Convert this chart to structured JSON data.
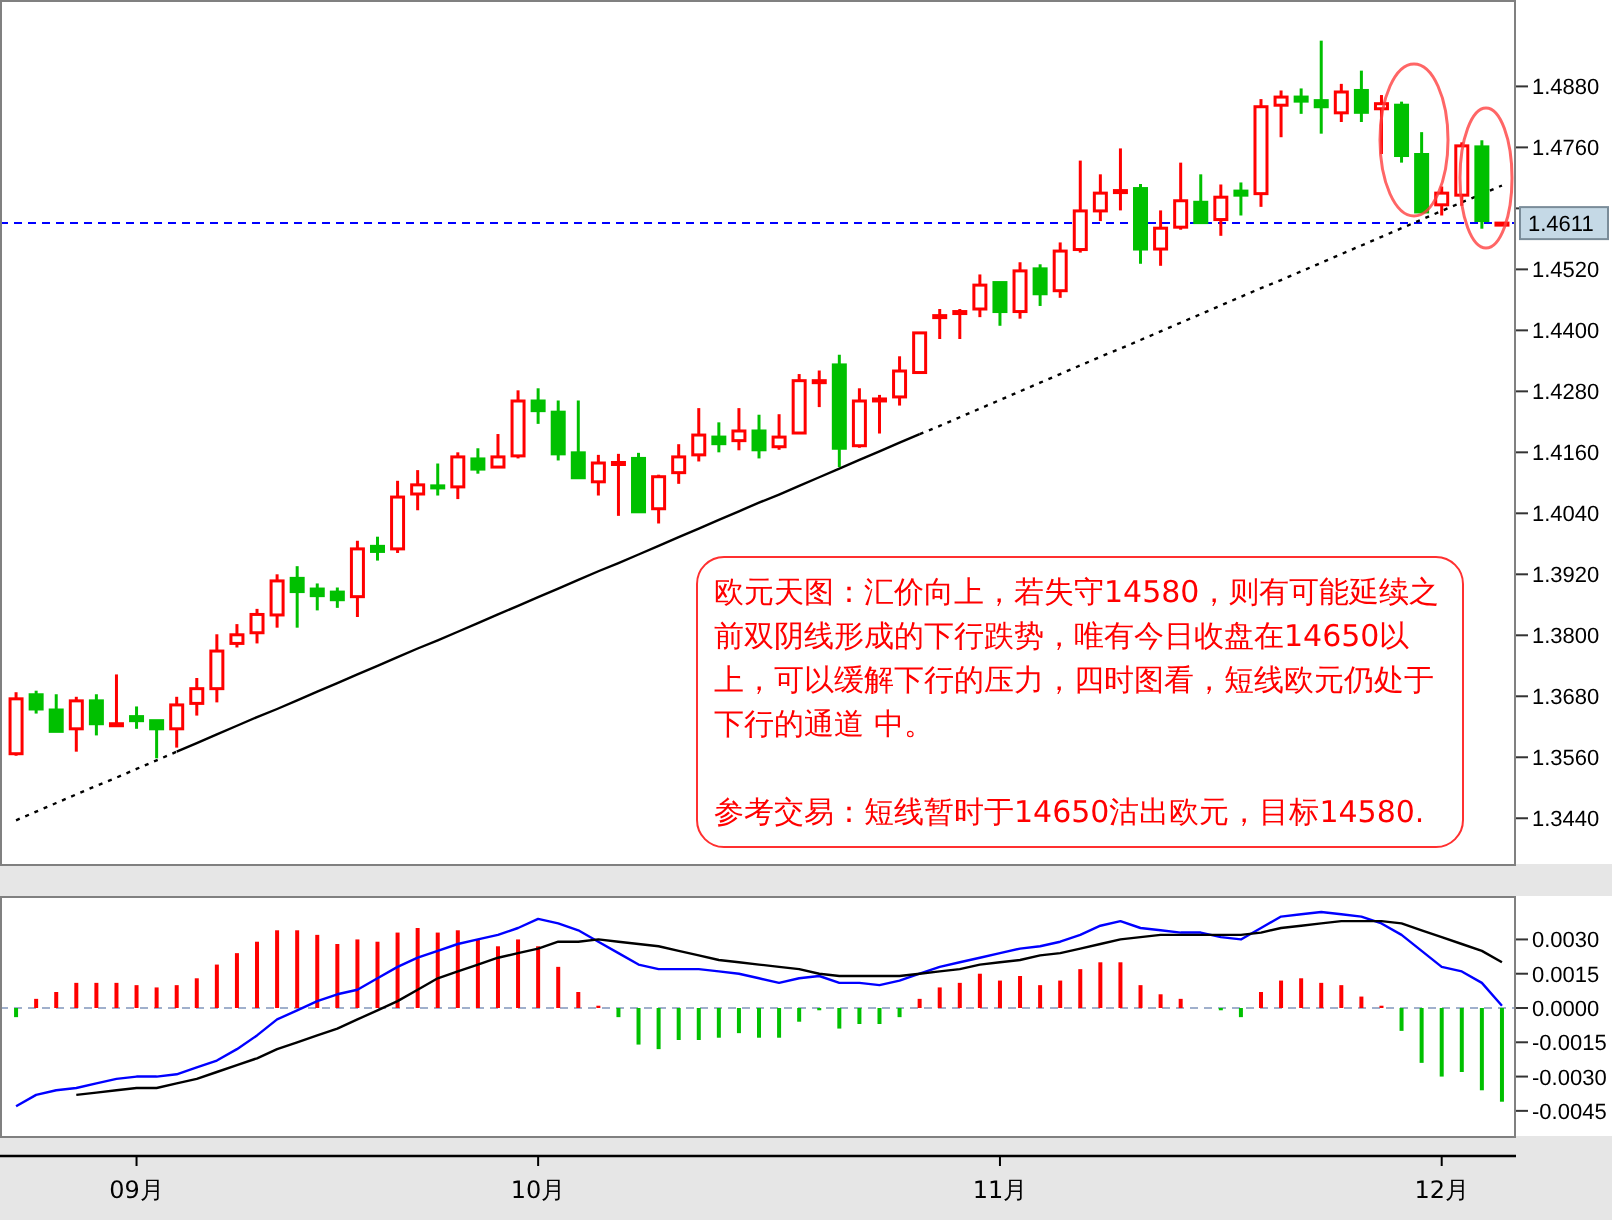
{
  "chart_data": [
    {
      "type": "candlestick",
      "tick_labels": "y",
      "categories": [
        null,
        null,
        null,
        null,
        null,
        null,
        null,
        null,
        null,
        null,
        null,
        null,
        null,
        null,
        null,
        null,
        null,
        null,
        null,
        null,
        null,
        null,
        null,
        null,
        null,
        null,
        null,
        null,
        null,
        null,
        null,
        null,
        null,
        null,
        null,
        null,
        null,
        null,
        null,
        null,
        null,
        null,
        null,
        null,
        null,
        null,
        null,
        null,
        null,
        null,
        null,
        null,
        null,
        null,
        null,
        null,
        null,
        null,
        null,
        null,
        null,
        null,
        null,
        null,
        null,
        null,
        null,
        null,
        null,
        null,
        null,
        null,
        null,
        null,
        null
      ],
      "ohlc": [
        [
          1.3567,
          1.3688,
          1.3563,
          1.3675
        ],
        [
          1.3683,
          1.3691,
          1.3646,
          1.3655
        ],
        [
          1.3653,
          1.3684,
          1.3611,
          1.3611
        ],
        [
          1.3616,
          1.3679,
          1.3571,
          1.3671
        ],
        [
          1.3671,
          1.3684,
          1.3603,
          1.3626
        ],
        [
          1.3625,
          1.3723,
          1.3625,
          1.3626
        ],
        [
          1.364,
          1.366,
          1.3616,
          1.3632
        ],
        [
          1.3632,
          1.3632,
          1.3558,
          1.3616
        ],
        [
          1.3616,
          1.3679,
          1.3579,
          1.3663
        ],
        [
          1.3666,
          1.3716,
          1.3642,
          1.3695
        ],
        [
          1.3695,
          1.3802,
          1.3668,
          1.3769
        ],
        [
          1.3784,
          1.3822,
          1.3776,
          1.3801
        ],
        [
          1.3805,
          1.3852,
          1.3784,
          1.3841
        ],
        [
          1.384,
          1.392,
          1.3815,
          1.3907
        ],
        [
          1.3912,
          1.3936,
          1.3815,
          1.3886
        ],
        [
          1.3891,
          1.3902,
          1.3849,
          1.3878
        ],
        [
          1.3885,
          1.3894,
          1.3854,
          1.387
        ],
        [
          1.3876,
          1.3986,
          1.3836,
          1.397
        ],
        [
          1.3975,
          1.3994,
          1.3947,
          1.3965
        ],
        [
          1.397,
          1.4104,
          1.3962,
          1.4072
        ],
        [
          1.4078,
          1.4125,
          1.4046,
          1.4096
        ],
        [
          1.4094,
          1.4138,
          1.4075,
          1.409
        ],
        [
          1.4092,
          1.416,
          1.4068,
          1.4151
        ],
        [
          1.4147,
          1.4168,
          1.4118,
          1.4127
        ],
        [
          1.4131,
          1.4196,
          1.4131,
          1.4151
        ],
        [
          1.4153,
          1.4282,
          1.4148,
          1.4261
        ],
        [
          1.4261,
          1.4286,
          1.4216,
          1.4242
        ],
        [
          1.4239,
          1.4262,
          1.4144,
          1.4157
        ],
        [
          1.4159,
          1.4262,
          1.411,
          1.411
        ],
        [
          1.4102,
          1.4155,
          1.4075,
          1.4139
        ],
        [
          1.4139,
          1.4157,
          1.4035,
          1.414
        ],
        [
          1.4148,
          1.4159,
          1.4043,
          1.4043
        ],
        [
          1.4049,
          1.4116,
          1.402,
          1.4112
        ],
        [
          1.412,
          1.4176,
          1.4098,
          1.4151
        ],
        [
          1.4155,
          1.4247,
          1.4142,
          1.4194
        ],
        [
          1.419,
          1.4219,
          1.416,
          1.4177
        ],
        [
          1.4183,
          1.4247,
          1.4164,
          1.4202
        ],
        [
          1.4202,
          1.4234,
          1.4148,
          1.4165
        ],
        [
          1.4171,
          1.4235,
          1.4165,
          1.419
        ],
        [
          1.4198,
          1.4314,
          1.4198,
          1.4301
        ],
        [
          1.43,
          1.4321,
          1.4249,
          1.4301
        ],
        [
          1.4332,
          1.4352,
          1.4131,
          1.4168
        ],
        [
          1.4173,
          1.4286,
          1.4169,
          1.4261
        ],
        [
          1.4264,
          1.4273,
          1.4197,
          1.4265
        ],
        [
          1.4269,
          1.4349,
          1.4252,
          1.432
        ],
        [
          1.4317,
          1.4395,
          1.4315,
          1.4395
        ],
        [
          1.4428,
          1.4442,
          1.4383,
          1.4429
        ],
        [
          1.4436,
          1.4442,
          1.4383,
          1.4437
        ],
        [
          1.4442,
          1.451,
          1.4426,
          1.4489
        ],
        [
          1.4494,
          1.4494,
          1.4409,
          1.4437
        ],
        [
          1.4437,
          1.4534,
          1.4423,
          1.4517
        ],
        [
          1.4521,
          1.453,
          1.4448,
          1.4472
        ],
        [
          1.4478,
          1.4573,
          1.4464,
          1.4556
        ],
        [
          1.4559,
          1.4734,
          1.4553,
          1.4635
        ],
        [
          1.4635,
          1.4707,
          1.4615,
          1.467
        ],
        [
          1.4674,
          1.4758,
          1.4636,
          1.4675
        ],
        [
          1.4679,
          1.4688,
          1.4531,
          1.456
        ],
        [
          1.456,
          1.4636,
          1.4527,
          1.4601
        ],
        [
          1.4603,
          1.473,
          1.4598,
          1.4655
        ],
        [
          1.4652,
          1.4707,
          1.461,
          1.4612
        ],
        [
          1.4618,
          1.4687,
          1.4586,
          1.4662
        ],
        [
          1.4674,
          1.4691,
          1.4626,
          1.4666
        ],
        [
          1.4669,
          1.4855,
          1.4643,
          1.484
        ],
        [
          1.4843,
          1.4872,
          1.478,
          1.4859
        ],
        [
          1.4859,
          1.4876,
          1.4826,
          1.4851
        ],
        [
          1.4852,
          1.497,
          1.4787,
          1.484
        ],
        [
          1.4828,
          1.4885,
          1.481,
          1.4869
        ],
        [
          1.4872,
          1.4911,
          1.481,
          1.4829
        ],
        [
          1.4836,
          1.4863,
          1.4747,
          1.4846
        ],
        [
          1.4843,
          1.485,
          1.473,
          1.4744
        ],
        [
          1.4746,
          1.479,
          1.4632,
          1.4633
        ],
        [
          1.4647,
          1.4683,
          1.4626,
          1.467
        ],
        [
          1.4666,
          1.477,
          1.4645,
          1.4763
        ],
        [
          1.4761,
          1.4774,
          1.46,
          1.4616
        ],
        [
          1.461,
          1.4613,
          1.4609,
          1.4611
        ]
      ],
      "colors": [
        "#ff0000",
        "#00c000",
        "#00c000",
        "#ff0000",
        "#00c000",
        "#ff0000",
        "#00c000",
        "#00c000",
        "#ff0000",
        "#ff0000",
        "#ff0000",
        "#ff0000",
        "#ff0000",
        "#ff0000",
        "#00c000",
        "#00c000",
        "#00c000",
        "#ff0000",
        "#00c000",
        "#ff0000",
        "#ff0000",
        "#00c000",
        "#ff0000",
        "#00c000",
        "#ff0000",
        "#ff0000",
        "#00c000",
        "#00c000",
        "#00c000",
        "#ff0000",
        "#ff0000",
        "#00c000",
        "#ff0000",
        "#ff0000",
        "#ff0000",
        "#00c000",
        "#ff0000",
        "#00c000",
        "#ff0000",
        "#ff0000",
        "#ff0000",
        "#00c000",
        "#ff0000",
        "#ff0000",
        "#ff0000",
        "#ff0000",
        "#ff0000",
        "#ff0000",
        "#ff0000",
        "#00c000",
        "#ff0000",
        "#00c000",
        "#ff0000",
        "#ff0000",
        "#ff0000",
        "#ff0000",
        "#00c000",
        "#ff0000",
        "#ff0000",
        "#00c000",
        "#ff0000",
        "#00c000",
        "#ff0000",
        "#ff0000",
        "#00c000",
        "#00c000",
        "#ff0000",
        "#00c000",
        "#ff0000",
        "#00c000",
        "#00c000",
        "#ff0000",
        "#ff0000",
        "#00c000",
        "#ff0000"
      ],
      "series": [
        {
          "type": "line",
          "color": "#000000",
          "line_style": "dotted",
          "values": [
            1.3436,
            1.3453,
            1.347,
            1.3487,
            1.3504,
            1.352,
            1.3537,
            1.3554,
            1.3571,
            null,
            null,
            null,
            null,
            null,
            null,
            null,
            null,
            null,
            null,
            null,
            null,
            null,
            null,
            null,
            null,
            null,
            null,
            null,
            null,
            null,
            null,
            null,
            null,
            null,
            null,
            null,
            null,
            null,
            null,
            null,
            null,
            null,
            null,
            null,
            null,
            null,
            null,
            null,
            null,
            null,
            null,
            null,
            null,
            null,
            null,
            null,
            null,
            null,
            null,
            null,
            null,
            null,
            null,
            null,
            null,
            null,
            null,
            null,
            null,
            null,
            null,
            null,
            null,
            null,
            null
          ]
        },
        {
          "type": "line",
          "color": "#000000",
          "line_style": "solid",
          "values": [
            null,
            null,
            null,
            null,
            null,
            null,
            null,
            null,
            1.3571,
            1.3588,
            1.3605,
            1.3622,
            1.3639,
            1.3655,
            1.3672,
            1.3689,
            1.3706,
            1.3723,
            1.374,
            1.3757,
            1.3774,
            1.379,
            1.3807,
            1.3824,
            1.3841,
            1.3858,
            1.3875,
            1.3892,
            1.3909,
            1.3926,
            1.3942,
            1.3959,
            1.3976,
            1.3993,
            1.401,
            1.4027,
            1.4044,
            1.4061,
            1.4077,
            1.4094,
            1.4111,
            1.4128,
            1.4145,
            1.4162,
            1.4179,
            1.4196,
            null,
            null,
            null,
            null,
            null,
            null,
            null,
            null,
            null,
            null,
            null,
            null,
            null,
            null,
            null,
            null,
            null,
            null,
            null,
            null,
            null,
            null,
            null,
            null,
            null,
            null,
            null,
            null,
            null
          ]
        },
        {
          "type": "line",
          "color": "#000000",
          "line_style": "dotted",
          "values": [
            null,
            null,
            null,
            null,
            null,
            null,
            null,
            null,
            null,
            null,
            null,
            null,
            null,
            null,
            null,
            null,
            null,
            null,
            null,
            null,
            null,
            null,
            null,
            null,
            null,
            null,
            null,
            null,
            null,
            null,
            null,
            null,
            null,
            null,
            null,
            null,
            null,
            null,
            null,
            null,
            null,
            null,
            null,
            null,
            null,
            1.4196,
            1.4212,
            1.4229,
            1.4246,
            1.4263,
            1.428,
            1.4297,
            1.4314,
            1.4331,
            1.4348,
            1.4364,
            1.4381,
            1.4398,
            1.4415,
            1.4432,
            1.4449,
            1.4466,
            1.4483,
            1.4499,
            1.4516,
            1.4533,
            1.455,
            1.4567,
            1.4584,
            1.4601,
            1.4618,
            1.4635,
            1.4652,
            1.4668,
            1.4685
          ]
        }
      ],
      "ylim": [
        1.335,
        1.505
      ],
      "yticks": [
        {
          "value": 1.344,
          "label": "1.3440"
        },
        {
          "value": 1.356,
          "label": "1.3560"
        },
        {
          "value": 1.368,
          "label": "1.3680"
        },
        {
          "value": 1.38,
          "label": "1.3800"
        },
        {
          "value": 1.392,
          "label": "1.3920"
        },
        {
          "value": 1.404,
          "label": "1.4040"
        },
        {
          "value": 1.416,
          "label": "1.4160"
        },
        {
          "value": 1.428,
          "label": "1.4280"
        },
        {
          "value": 1.44,
          "label": "1.4400"
        },
        {
          "value": 1.452,
          "label": "1.4520"
        },
        {
          "value": 1.464,
          "label": null
        },
        {
          "value": 1.476,
          "label": "1.4760"
        },
        {
          "value": 1.488,
          "label": "1.4880"
        }
      ],
      "ref_lines": [
        {
          "axis": "y",
          "value": 1.4611,
          "label": "1.4611",
          "color": "#0000ff",
          "line_style": "dashed"
        }
      ],
      "annotations": [
        "欧元天图：汇价向上，若失守14580，则有可能延续之前双阴线形成的下行跌势，唯有今日收盘在14650以上，可以缓解下行的压力，四时图看，短线欧元仍处于下行的通道 中。",
        "参考交易：短线暂时于14650沽出欧元，目标14580."
      ]
    },
    {
      "type": "bar",
      "categories": [
        null,
        null,
        null,
        null,
        null,
        null,
        "09月",
        null,
        null,
        null,
        null,
        null,
        null,
        null,
        null,
        null,
        null,
        null,
        null,
        null,
        null,
        null,
        null,
        null,
        null,
        null,
        "10月",
        null,
        null,
        null,
        null,
        null,
        null,
        null,
        null,
        null,
        null,
        null,
        null,
        null,
        null,
        null,
        null,
        null,
        null,
        null,
        null,
        null,
        null,
        "11月",
        null,
        null,
        null,
        null,
        null,
        null,
        null,
        null,
        null,
        null,
        null,
        null,
        null,
        null,
        null,
        null,
        null,
        null,
        null,
        null,
        null,
        "12月",
        null,
        null,
        null
      ],
      "series": [
        {
          "type": "bar",
          "values": [
            -0.0004,
            0.0004,
            0.0007,
            0.0011,
            0.0011,
            0.0011,
            0.001,
            0.0009,
            0.001,
            0.0013,
            0.0019,
            0.0024,
            0.0029,
            0.0034,
            0.0034,
            0.0032,
            0.0028,
            0.003,
            0.0029,
            0.0033,
            0.0035,
            0.0033,
            0.0034,
            0.003,
            0.0027,
            0.003,
            0.0027,
            0.0018,
            0.0007,
            0.0001,
            -0.0004,
            -0.0016,
            -0.0018,
            -0.0014,
            -0.0014,
            -0.0013,
            -0.0011,
            -0.0013,
            -0.0013,
            -0.0006,
            -0.0001,
            -0.0009,
            -0.0007,
            -0.0007,
            -0.0004,
            0.0004,
            0.0009,
            0.0011,
            0.0015,
            0.0012,
            0.0014,
            0.001,
            0.0012,
            0.0017,
            0.002,
            0.002,
            0.001,
            0.0006,
            0.0004,
            0,
            -0.0001,
            -0.0004,
            0.0007,
            0.0012,
            0.0013,
            0.0011,
            0.001,
            0.0005,
            0.0001,
            -0.001,
            -0.0024,
            -0.003,
            -0.0028,
            -0.0036,
            -0.0041
          ],
          "colors": [
            "#00c000",
            "#ff0000",
            "#ff0000",
            "#ff0000",
            "#ff0000",
            "#ff0000",
            "#ff0000",
            "#ff0000",
            "#ff0000",
            "#ff0000",
            "#ff0000",
            "#ff0000",
            "#ff0000",
            "#ff0000",
            "#ff0000",
            "#ff0000",
            "#ff0000",
            "#ff0000",
            "#ff0000",
            "#ff0000",
            "#ff0000",
            "#ff0000",
            "#ff0000",
            "#ff0000",
            "#ff0000",
            "#ff0000",
            "#ff0000",
            "#ff0000",
            "#ff0000",
            "#ff0000",
            "#00c000",
            "#00c000",
            "#00c000",
            "#00c000",
            "#00c000",
            "#00c000",
            "#00c000",
            "#00c000",
            "#00c000",
            "#00c000",
            "#00c000",
            "#00c000",
            "#00c000",
            "#00c000",
            "#00c000",
            "#ff0000",
            "#ff0000",
            "#ff0000",
            "#ff0000",
            "#ff0000",
            "#ff0000",
            "#ff0000",
            "#ff0000",
            "#ff0000",
            "#ff0000",
            "#ff0000",
            "#ff0000",
            "#ff0000",
            "#ff0000",
            "#ff0000",
            "#00c000",
            "#00c000",
            "#ff0000",
            "#ff0000",
            "#ff0000",
            "#ff0000",
            "#ff0000",
            "#ff0000",
            "#ff0000",
            "#00c000",
            "#00c000",
            "#00c000",
            "#00c000",
            "#00c000",
            "#00c000"
          ]
        },
        {
          "type": "line",
          "color": "#0000ff",
          "values": [
            -0.0043,
            -0.0038,
            -0.0036,
            -0.0035,
            -0.0033,
            -0.0031,
            -0.003,
            -0.003,
            -0.0029,
            -0.0026,
            -0.0023,
            -0.0018,
            -0.0012,
            -0.0005,
            -0.0001,
            0.0003,
            0.0006,
            0.0008,
            0.0013,
            0.0018,
            0.0022,
            0.0025,
            0.0028,
            0.003,
            0.0032,
            0.0035,
            0.0039,
            0.0037,
            0.0034,
            0.0029,
            0.0024,
            0.0019,
            0.0017,
            0.0017,
            0.0017,
            0.0016,
            0.0015,
            0.0013,
            0.0011,
            0.0013,
            0.0014,
            0.0011,
            0.0011,
            0.001,
            0.0012,
            0.0015,
            0.0018,
            0.002,
            0.0022,
            0.0024,
            0.0026,
            0.0027,
            0.0029,
            0.0032,
            0.0036,
            0.0038,
            0.0035,
            0.0034,
            0.0033,
            0.0033,
            0.0031,
            0.003,
            0.0035,
            0.004,
            0.0041,
            0.0042,
            0.0041,
            0.004,
            0.0037,
            0.0032,
            0.0025,
            0.0018,
            0.0016,
            0.0011,
            0.0001
          ]
        },
        {
          "type": "line",
          "color": "#000000",
          "values": [
            null,
            null,
            null,
            -0.0038,
            -0.0037,
            -0.0036,
            -0.0035,
            -0.0035,
            -0.0033,
            -0.0031,
            -0.0028,
            -0.0025,
            -0.0022,
            -0.0018,
            -0.0015,
            -0.0012,
            -0.0009,
            -0.0005,
            -0.0001,
            0.0003,
            0.0008,
            0.0013,
            0.0016,
            0.0019,
            0.0022,
            0.0024,
            0.0026,
            0.0029,
            0.0029,
            0.003,
            0.0029,
            0.0028,
            0.0027,
            0.0025,
            0.0023,
            0.0021,
            0.002,
            0.0019,
            0.0018,
            0.0017,
            0.0015,
            0.0014,
            0.0014,
            0.0014,
            0.0014,
            0.0015,
            0.0016,
            0.0017,
            0.0019,
            0.002,
            0.0021,
            0.0023,
            0.0024,
            0.0026,
            0.0028,
            0.003,
            0.0031,
            0.0032,
            0.0032,
            0.0032,
            0.0032,
            0.0032,
            0.0033,
            0.0035,
            0.0036,
            0.0037,
            0.0038,
            0.0038,
            0.0038,
            0.0037,
            0.0034,
            0.0031,
            0.0028,
            0.0025,
            0.002
          ]
        }
      ],
      "ylim": [
        -0.0056,
        0.0049
      ],
      "yticks": [
        {
          "value": 0.003,
          "label": "0.0030"
        },
        {
          "value": 0.0015,
          "label": "0.0015"
        },
        {
          "value": 0,
          "label": "0.0000"
        },
        {
          "value": -0.0015,
          "label": "-0.0015"
        },
        {
          "value": -0.003,
          "label": "-0.0030"
        },
        {
          "value": -0.0045,
          "label": "-0.0045"
        }
      ],
      "ref_lines": [
        {
          "axis": "y",
          "value": 0,
          "label": null,
          "color": "#a0b0cc",
          "line_style": "dashed"
        }
      ]
    }
  ]
}
